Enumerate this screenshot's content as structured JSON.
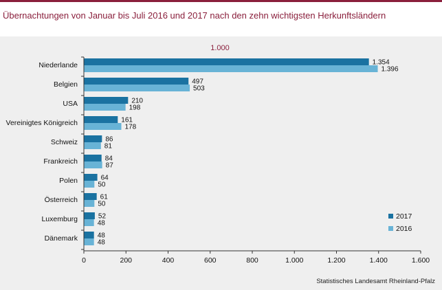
{
  "title": "Übernachtungen von Januar bis Juli 2016 und 2017 nach den zehn wichtigsten Herkunftsländern",
  "unit_label": "1.000",
  "source": "Statistisches Landesamt Rheinland-Pfalz",
  "colors": {
    "accent": "#8a1f3c",
    "series_2017": "#1a72a1",
    "series_2016": "#68b3d6"
  },
  "chart_data": {
    "type": "bar",
    "orientation": "horizontal",
    "title": "Übernachtungen von Januar bis Juli 2016 und 2017 nach den zehn wichtigsten Herkunftsländern",
    "categories": [
      "Niederlande",
      "Belgien",
      "USA",
      "Vereinigtes Königreich",
      "Schweiz",
      "Frankreich",
      "Polen",
      "Österreich",
      "Luxemburg",
      "Dänemark"
    ],
    "series": [
      {
        "name": "2017",
        "values": [
          1354,
          497,
          210,
          161,
          86,
          84,
          64,
          61,
          52,
          48
        ]
      },
      {
        "name": "2016",
        "values": [
          1396,
          503,
          198,
          178,
          81,
          87,
          50,
          50,
          48,
          48
        ]
      }
    ],
    "value_labels": [
      [
        "1.354",
        "497",
        "210",
        "161",
        "86",
        "84",
        "64",
        "61",
        "52",
        "48"
      ],
      [
        "1.396",
        "503",
        "198",
        "178",
        "81",
        "87",
        "50",
        "50",
        "48",
        "48"
      ]
    ],
    "xticks": [
      0,
      200,
      400,
      600,
      800,
      1000,
      1200,
      1400,
      1600
    ],
    "xtick_labels": [
      "0",
      "200",
      "400",
      "600",
      "800",
      "1.000",
      "1.200",
      "1.400",
      "1.600"
    ],
    "xlim": [
      0,
      1600
    ],
    "xlabel": "",
    "ylabel": "",
    "grid": false,
    "legend": {
      "position": "bottom-right",
      "entries": [
        "2017",
        "2016"
      ]
    }
  }
}
